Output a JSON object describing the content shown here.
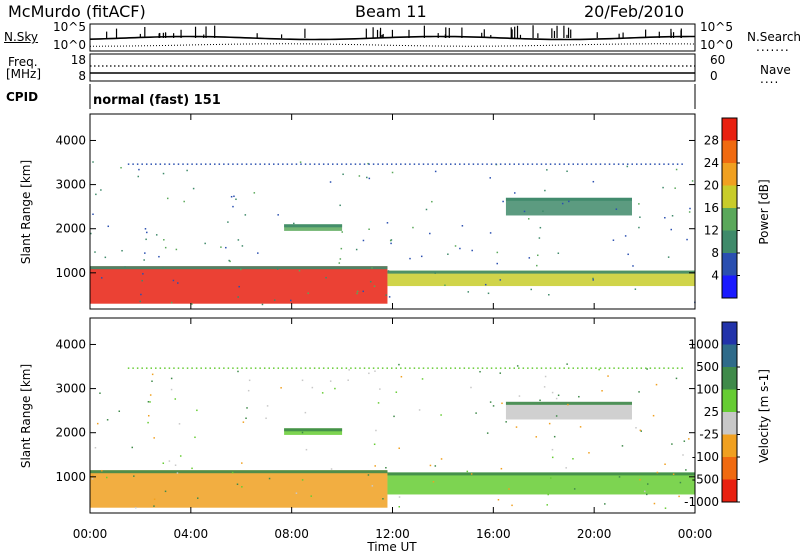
{
  "header": {
    "station": "McMurdo (fitACF)",
    "beam": "Beam 11",
    "date": "20/Feb/2010"
  },
  "top_panels": {
    "nsky_label": "N.Sky",
    "nsky_ticks": [
      "10^5",
      "10^0"
    ],
    "nsearch_label": "N.Search",
    "nsearch_ticks": [
      "10^5",
      "10^0"
    ],
    "freq_label": "Freq.",
    "freq_unit": "[MHz]",
    "freq_ticks": [
      "18",
      "8"
    ],
    "nave_label": "Nave",
    "nave_ticks": [
      "60",
      "0"
    ],
    "cpid_label": "CPID",
    "cpid_value": "normal (fast) 151"
  },
  "chart_data": [
    {
      "type": "heatmap",
      "panel": "power",
      "xlabel": "",
      "ylabel": "Slant Range [km]",
      "x_ticks": [
        "00:00",
        "04:00",
        "08:00",
        "12:00",
        "16:00",
        "20:00",
        "00:00"
      ],
      "xlim_hours": [
        0,
        24
      ],
      "y_ticks": [
        1000,
        2000,
        3000,
        4000
      ],
      "ylim": [
        180,
        4600
      ],
      "colorbar_label": "Power [dB]",
      "colorbar_ticks": [
        "4",
        "8",
        "12",
        "16",
        "20",
        "24",
        "28"
      ],
      "colorbar_colors": [
        "#1a1aff",
        "#2a4fb0",
        "#3f8a6a",
        "#5aa85a",
        "#c8cc2a",
        "#f0a020",
        "#f06a10",
        "#e82010"
      ],
      "features": [
        {
          "start_h": 0.0,
          "end_h": 11.8,
          "range_lo": 300,
          "range_hi": 1150,
          "level_db": 26
        },
        {
          "start_h": 11.8,
          "end_h": 24.0,
          "range_lo": 700,
          "range_hi": 1050,
          "level_db": 16
        },
        {
          "start_h": 7.7,
          "end_h": 10.0,
          "range_lo": 1950,
          "range_hi": 2100,
          "level_db": 10
        },
        {
          "start_h": 16.5,
          "end_h": 21.5,
          "range_lo": 2300,
          "range_hi": 2700,
          "level_db": 8
        }
      ]
    },
    {
      "type": "heatmap",
      "panel": "velocity",
      "xlabel": "Time UT",
      "ylabel": "Slant Range [km]",
      "x_ticks": [
        "00:00",
        "04:00",
        "08:00",
        "12:00",
        "16:00",
        "20:00",
        "00:00"
      ],
      "xlim_hours": [
        0,
        24
      ],
      "y_ticks": [
        1000,
        2000,
        3000,
        4000
      ],
      "ylim": [
        180,
        4600
      ],
      "colorbar_label": "Velocity [m s-1]",
      "colorbar_ticks": [
        "1000",
        "500",
        "100",
        "25",
        "-25",
        "-100",
        "-500",
        "-1000"
      ],
      "colorbar_colors": [
        "#2233aa",
        "#2f6b8a",
        "#3f8a4a",
        "#66cc33",
        "#c8c8c8",
        "#f0a020",
        "#f06a10",
        "#e82010"
      ],
      "features": [
        {
          "start_h": 0.0,
          "end_h": 11.8,
          "range_lo": 300,
          "range_hi": 1150,
          "velocity": -100
        },
        {
          "start_h": 11.8,
          "end_h": 24.0,
          "range_lo": 600,
          "range_hi": 1100,
          "velocity": 100
        },
        {
          "start_h": 7.7,
          "end_h": 10.0,
          "range_lo": 1950,
          "range_hi": 2100,
          "velocity": 100
        },
        {
          "start_h": 16.5,
          "end_h": 21.5,
          "range_lo": 2300,
          "range_hi": 2700,
          "velocity": 0
        }
      ]
    }
  ]
}
